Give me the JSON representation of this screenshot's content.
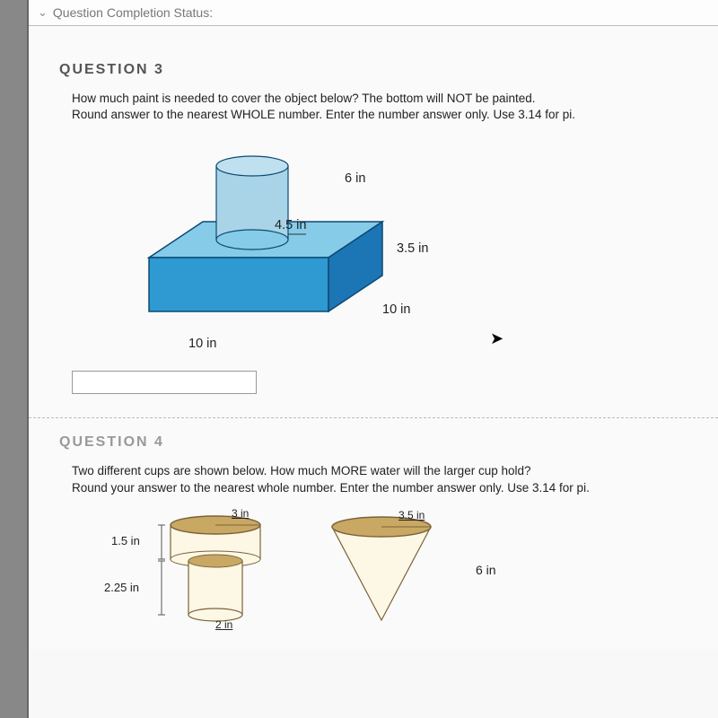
{
  "statusBar": {
    "label": "Question Completion Status:"
  },
  "q3": {
    "heading": "QUESTION 3",
    "text": "How much paint is needed to cover the object below? The bottom will NOT be painted.\nRound answer to the nearest WHOLE number. Enter the number answer only. Use 3.14 for pi.",
    "figure": {
      "type": "composite-solid",
      "colors": {
        "cylTop": "#bfe0ef",
        "cylSide": "#a9d4e8",
        "prismTop": "#86cbe8",
        "prismFront": "#2f99d1",
        "prismRight": "#1c75b5",
        "outline": "#0b4a73"
      },
      "labels": {
        "sixIn": "6 in",
        "fourFive": "4.5 in",
        "threeFive": "3.5 in",
        "tenRight": "10 in",
        "tenBottom": "10 in"
      }
    }
  },
  "q4": {
    "heading": "QUESTION 4",
    "text": "Two different cups are shown below.  How much MORE water will the larger cup hold?\nRound your answer to the nearest whole number.  Enter the number answer only. Use 3.14 for pi.",
    "cups": {
      "colors": {
        "fill": "#fdf7e6",
        "rim": "#c9a864",
        "outline": "#7a6338"
      },
      "labels": {
        "threeIn": "3 in",
        "oneFive": "1.5 in",
        "twoTwoFive": "2.25 in",
        "twoIn": "2 in",
        "coneThreeFive": "3.5 in",
        "coneSix": "6 in"
      }
    }
  }
}
